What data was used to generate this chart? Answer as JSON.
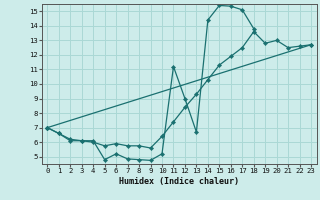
{
  "xlabel": "Humidex (Indice chaleur)",
  "bg_color": "#cdecea",
  "grid_color": "#aad8d5",
  "line_color": "#1a7070",
  "xlim": [
    -0.5,
    23.5
  ],
  "ylim": [
    4.5,
    15.5
  ],
  "xticks": [
    0,
    1,
    2,
    3,
    4,
    5,
    6,
    7,
    8,
    9,
    10,
    11,
    12,
    13,
    14,
    15,
    16,
    17,
    18,
    19,
    20,
    21,
    22,
    23
  ],
  "yticks": [
    5,
    6,
    7,
    8,
    9,
    10,
    11,
    12,
    13,
    14,
    15
  ],
  "line1_x": [
    0,
    1,
    2,
    3,
    4,
    5,
    6,
    7,
    8,
    9,
    10,
    11,
    12,
    13,
    14,
    15,
    16,
    17,
    18
  ],
  "line1_y": [
    7.0,
    6.6,
    6.2,
    6.1,
    6.1,
    4.8,
    5.2,
    4.85,
    4.8,
    4.75,
    5.2,
    11.2,
    9.0,
    6.7,
    14.4,
    15.4,
    15.35,
    15.1,
    13.8
  ],
  "line2_x": [
    0,
    1,
    2,
    3,
    4,
    5,
    6,
    7,
    8,
    9,
    10,
    11,
    12,
    13,
    14,
    15,
    16,
    17,
    18,
    19,
    20,
    21,
    22,
    23
  ],
  "line2_y": [
    7.0,
    6.6,
    6.1,
    6.1,
    6.0,
    5.75,
    5.9,
    5.75,
    5.75,
    5.6,
    6.4,
    7.4,
    8.4,
    9.3,
    10.3,
    11.3,
    11.9,
    12.5,
    13.6,
    12.8,
    13.0,
    12.5,
    12.6,
    12.7
  ],
  "line3_x": [
    0,
    23
  ],
  "line3_y": [
    7.0,
    12.7
  ]
}
